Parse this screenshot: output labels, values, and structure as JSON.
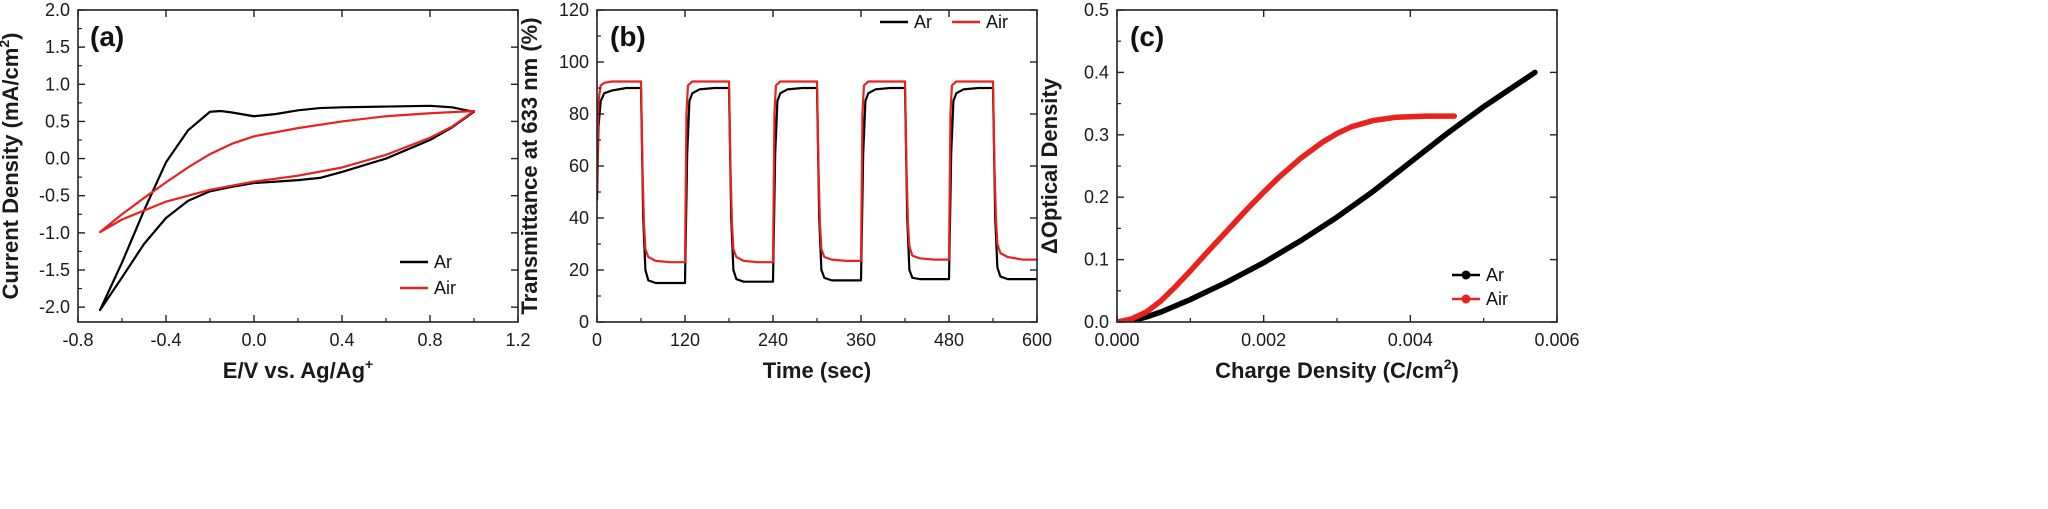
{
  "colors": {
    "Ar": "#000000",
    "Air": "#e8221c"
  },
  "chart_data": [
    {
      "type": "line",
      "panel_label": "(a)",
      "xlabel": "E/V vs. Ag/Ag",
      "xlabel_sup": "+",
      "ylabel": "Current Density (mA/cm",
      "ylabel_sup": "2",
      "ylabel_end": ")",
      "xlim": [
        -0.8,
        1.2
      ],
      "ylim": [
        -2.2,
        2.0
      ],
      "xticks": [
        -0.8,
        -0.4,
        0.0,
        0.4,
        0.8,
        1.2
      ],
      "xtick_labels": [
        "-0.8",
        "-0.4",
        "0.0",
        "0.4",
        "0.8",
        "1.2"
      ],
      "yticks": [
        -2.0,
        -1.5,
        -1.0,
        -0.5,
        0.0,
        0.5,
        1.0,
        1.5,
        2.0
      ],
      "ytick_labels": [
        "-2.0",
        "-1.5",
        "-1.0",
        "-0.5",
        "0.0",
        "0.5",
        "1.0",
        "1.5",
        "2.0"
      ],
      "legend_position": "bottom-right",
      "series": [
        {
          "name": "Ar",
          "color_key": "Ar",
          "x": [
            -0.7,
            -0.6,
            -0.5,
            -0.4,
            -0.3,
            -0.2,
            -0.15,
            -0.1,
            0.0,
            0.1,
            0.2,
            0.3,
            0.4,
            0.6,
            0.8,
            0.9,
            1.0,
            0.9,
            0.8,
            0.6,
            0.4,
            0.3,
            0.2,
            0.1,
            0.0,
            -0.1,
            -0.2,
            -0.3,
            -0.4,
            -0.5,
            -0.6,
            -0.7
          ],
          "y": [
            -2.04,
            -1.4,
            -0.7,
            -0.05,
            0.38,
            0.63,
            0.64,
            0.62,
            0.57,
            0.6,
            0.65,
            0.68,
            0.69,
            0.7,
            0.71,
            0.69,
            0.63,
            0.42,
            0.25,
            0.0,
            -0.18,
            -0.26,
            -0.29,
            -0.31,
            -0.33,
            -0.38,
            -0.44,
            -0.57,
            -0.8,
            -1.15,
            -1.6,
            -2.04
          ]
        },
        {
          "name": "Air",
          "color_key": "Air",
          "x": [
            -0.7,
            -0.6,
            -0.5,
            -0.4,
            -0.3,
            -0.2,
            -0.1,
            0.0,
            0.2,
            0.4,
            0.6,
            0.8,
            1.0,
            0.9,
            0.8,
            0.6,
            0.4,
            0.2,
            0.0,
            -0.2,
            -0.4,
            -0.6,
            -0.7
          ],
          "y": [
            -0.99,
            -0.75,
            -0.53,
            -0.32,
            -0.12,
            0.06,
            0.2,
            0.3,
            0.41,
            0.5,
            0.57,
            0.61,
            0.64,
            0.43,
            0.28,
            0.05,
            -0.12,
            -0.23,
            -0.31,
            -0.42,
            -0.58,
            -0.82,
            -0.99
          ]
        }
      ]
    },
    {
      "type": "line",
      "panel_label": "(b)",
      "xlabel": "Time (sec)",
      "ylabel": "Transmittance at 633 nm (%)",
      "xlim": [
        0,
        600
      ],
      "ylim": [
        0,
        120
      ],
      "xticks": [
        0,
        120,
        240,
        360,
        480,
        600
      ],
      "xtick_labels": [
        "0",
        "120",
        "240",
        "360",
        "480",
        "600"
      ],
      "yticks": [
        0,
        20,
        40,
        60,
        80,
        100,
        120
      ],
      "ytick_labels": [
        "0",
        "20",
        "40",
        "60",
        "80",
        "100",
        "120"
      ],
      "legend_position": "top-right",
      "series": [
        {
          "name": "Ar",
          "color_key": "Ar",
          "x": [
            0,
            2,
            5,
            10,
            20,
            40,
            60,
            63,
            66,
            70,
            80,
            100,
            120,
            123,
            126,
            130,
            140,
            160,
            180,
            183,
            186,
            190,
            200,
            220,
            240,
            243,
            246,
            250,
            260,
            280,
            300,
            303,
            306,
            310,
            320,
            340,
            360,
            363,
            366,
            370,
            380,
            400,
            420,
            423,
            426,
            430,
            440,
            460,
            480,
            483,
            486,
            490,
            500,
            520,
            540,
            543,
            546,
            550,
            560,
            580,
            600
          ],
          "y": [
            47,
            75,
            85,
            88,
            89,
            90,
            90,
            40,
            20,
            16,
            15,
            15,
            15,
            65,
            85,
            88,
            89.5,
            90,
            90,
            40,
            20,
            16.5,
            15.5,
            15.5,
            15.5,
            65,
            85,
            88,
            89.5,
            90,
            90,
            40,
            20,
            17,
            16,
            16,
            16,
            65,
            85,
            88,
            89.5,
            90,
            90,
            40,
            20,
            17,
            16.5,
            16.5,
            16.5,
            65,
            85,
            88,
            89.5,
            90,
            90,
            40,
            21,
            17.5,
            16.5,
            16.5,
            16.5
          ]
        },
        {
          "name": "Air",
          "color_key": "Air",
          "x": [
            0,
            2,
            5,
            10,
            20,
            40,
            60,
            62,
            64,
            66,
            70,
            80,
            100,
            120,
            122,
            124,
            130,
            140,
            160,
            180,
            182,
            184,
            186,
            190,
            200,
            220,
            240,
            242,
            244,
            250,
            260,
            280,
            300,
            302,
            304,
            306,
            310,
            320,
            340,
            360,
            362,
            364,
            370,
            380,
            400,
            420,
            422,
            424,
            426,
            430,
            440,
            460,
            480,
            482,
            484,
            490,
            500,
            520,
            540,
            542,
            544,
            546,
            550,
            560,
            580,
            600
          ],
          "y": [
            50,
            85,
            91,
            92,
            92.5,
            92.5,
            92.5,
            60,
            38,
            28,
            25,
            23.5,
            23,
            23,
            80,
            91,
            92.5,
            92.5,
            92.5,
            92.5,
            60,
            38,
            28,
            25,
            23.5,
            23,
            23,
            80,
            91,
            92.5,
            92.5,
            92.5,
            92.5,
            60,
            38,
            28,
            25,
            24,
            23.5,
            23.5,
            80,
            91,
            92.5,
            92.5,
            92.5,
            92.5,
            60,
            38,
            29,
            25.5,
            24.5,
            24,
            24,
            80,
            91,
            92.5,
            92.5,
            92.5,
            92.5,
            60,
            40,
            30,
            26.5,
            25,
            24,
            24
          ]
        }
      ]
    },
    {
      "type": "line",
      "panel_label": "(c)",
      "xlabel": "Charge Density (C/cm",
      "xlabel_sup": "2",
      "xlabel_end": ")",
      "ylabel": "ΔOptical Density",
      "xlim": [
        0,
        0.006
      ],
      "ylim": [
        0,
        0.5
      ],
      "xticks": [
        0,
        0.002,
        0.004,
        0.006
      ],
      "xtick_labels": [
        "0.000",
        "0.002",
        "0.004",
        "0.006"
      ],
      "yticks": [
        0,
        0.1,
        0.2,
        0.3,
        0.4,
        0.5
      ],
      "ytick_labels": [
        "0.0",
        "0.1",
        "0.2",
        "0.3",
        "0.4",
        "0.5"
      ],
      "legend_position": "bottom-right",
      "series": [
        {
          "name": "Ar",
          "color_key": "Ar",
          "x": [
            0,
            0.0002,
            0.0004,
            0.0006,
            0.0008,
            0.001,
            0.0015,
            0.002,
            0.0025,
            0.003,
            0.0035,
            0.004,
            0.0045,
            0.005,
            0.0057
          ],
          "y": [
            0,
            0.002,
            0.008,
            0.016,
            0.026,
            0.036,
            0.064,
            0.095,
            0.13,
            0.168,
            0.21,
            0.256,
            0.302,
            0.345,
            0.4
          ]
        },
        {
          "name": "Air",
          "color_key": "Air",
          "x": [
            0,
            0.0002,
            0.0004,
            0.0006,
            0.0008,
            0.001,
            0.0012,
            0.0015,
            0.0018,
            0.002,
            0.0022,
            0.0025,
            0.0028,
            0.003,
            0.0032,
            0.0035,
            0.0038,
            0.004,
            0.0042,
            0.0044,
            0.0046
          ],
          "y": [
            0,
            0.005,
            0.016,
            0.034,
            0.057,
            0.082,
            0.108,
            0.146,
            0.184,
            0.208,
            0.231,
            0.262,
            0.288,
            0.302,
            0.313,
            0.323,
            0.328,
            0.329,
            0.33,
            0.33,
            0.33
          ]
        }
      ]
    }
  ]
}
